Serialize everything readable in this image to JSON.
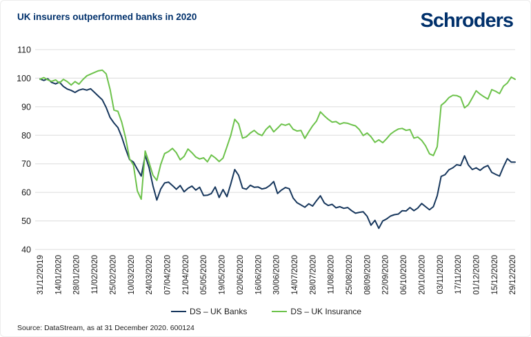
{
  "header": {
    "title": "UK insurers outperformed banks in 2020",
    "logo_text": "Schroders"
  },
  "footer": {
    "source": "Source: DataStream, as at 31 December 2020. 600124"
  },
  "colors": {
    "heading": "#00306b",
    "logo": "#00306b",
    "banks_line": "#16365c",
    "insurance_line": "#6cc24a",
    "grid": "#dcdcdc",
    "axis_text": "#1a1a1a"
  },
  "chart_data": {
    "type": "line",
    "title": "UK insurers outperformed banks in 2020",
    "xlabel": "",
    "ylabel": "",
    "ylim": [
      40,
      110
    ],
    "yticks": [
      110,
      100,
      90,
      80,
      70,
      60,
      50,
      40
    ],
    "grid": "horizontal",
    "legend_position": "bottom",
    "x_tick_labels": [
      "31/12/2019",
      "14/01/2020",
      "28/01/2020",
      "11/02/2020",
      "25/02/2020",
      "10/03/2020",
      "24/03/2020",
      "07/04/2020",
      "21/04/2020",
      "05/05/2020",
      "19/05/2020",
      "02/06/2020",
      "16/06/2020",
      "30/06/2020",
      "14/07/2020",
      "28/07/2020",
      "11/08/2020",
      "25/08/2020",
      "08/09/2020",
      "22/09/2020",
      "06/10/2020",
      "20/10/2020",
      "03/11/2020",
      "17/11/2020",
      "01/12/2020",
      "15/12/2020",
      "29/12/2020"
    ],
    "x_tick_interval_days": 14,
    "sample_interval_days": 3,
    "total_days": 366,
    "index_base": "31/12/2019 = 100",
    "series": [
      {
        "name": "DS – UK Banks",
        "color": "#16365c",
        "values": [
          99.7,
          99.2,
          99.8,
          98.5,
          98.0,
          98.6,
          97.1,
          96.2,
          95.7,
          95.0,
          95.8,
          96.2,
          95.8,
          96.3,
          95.0,
          93.7,
          92.4,
          89.7,
          86.2,
          84.3,
          82.7,
          79.4,
          75.2,
          71.5,
          70.6,
          68.1,
          65.7,
          72.9,
          68.7,
          62.3,
          57.3,
          61.2,
          63.3,
          63.6,
          62.4,
          61.1,
          62.4,
          60.2,
          61.4,
          62.2,
          60.8,
          61.8,
          58.9,
          59.0,
          59.6,
          61.9,
          58.2,
          61.0,
          58.5,
          63.0,
          68.0,
          66.0,
          61.5,
          61.1,
          62.5,
          61.8,
          61.9,
          61.2,
          61.5,
          62.4,
          63.8,
          59.6,
          60.8,
          61.7,
          61.3,
          58.0,
          56.4,
          55.6,
          54.8,
          56.0,
          55.2,
          57.1,
          58.8,
          56.3,
          55.4,
          55.8,
          54.6,
          55.0,
          54.4,
          54.7,
          53.6,
          52.7,
          53.0,
          53.2,
          51.6,
          48.5,
          50.2,
          47.4,
          50.0,
          50.7,
          51.7,
          52.2,
          52.4,
          53.6,
          53.5,
          54.7,
          53.6,
          54.5,
          56.1,
          55.0,
          53.9,
          55.0,
          58.8,
          65.6,
          66.2,
          67.9,
          68.6,
          69.7,
          69.4,
          72.8,
          69.6,
          68.0,
          68.6,
          67.7,
          68.8,
          69.4,
          67.0,
          66.3,
          65.7,
          69.0,
          71.8,
          70.6,
          70.6
        ]
      },
      {
        "name": "DS – UK Insurance",
        "color": "#6cc24a",
        "values": [
          99.6,
          100.2,
          99.4,
          98.9,
          99.4,
          98.3,
          99.6,
          98.8,
          97.6,
          98.8,
          97.9,
          99.5,
          100.8,
          101.4,
          102.0,
          102.6,
          102.8,
          101.5,
          96.0,
          88.8,
          88.4,
          84.5,
          79.0,
          71.8,
          69.6,
          60.5,
          57.6,
          74.5,
          70.5,
          66.0,
          64.2,
          69.8,
          73.6,
          74.3,
          75.4,
          73.9,
          71.4,
          72.6,
          75.2,
          73.9,
          72.4,
          71.7,
          72.1,
          70.7,
          73.1,
          72.1,
          70.8,
          72.0,
          76.0,
          80.0,
          85.6,
          84.0,
          79.0,
          79.5,
          80.8,
          81.7,
          80.5,
          79.9,
          82.0,
          83.3,
          81.2,
          82.5,
          83.9,
          83.5,
          84.0,
          82.1,
          81.5,
          81.7,
          78.9,
          81.2,
          83.3,
          85.0,
          88.2,
          86.8,
          85.6,
          84.6,
          84.8,
          83.9,
          84.4,
          84.2,
          83.7,
          83.3,
          82.0,
          79.9,
          80.8,
          79.5,
          77.5,
          78.4,
          77.4,
          78.8,
          80.4,
          81.4,
          82.2,
          82.4,
          81.7,
          82.0,
          79.0,
          79.4,
          78.2,
          76.3,
          73.5,
          72.9,
          76.0,
          90.5,
          91.6,
          93.2,
          94.0,
          93.9,
          93.3,
          89.6,
          90.7,
          93.1,
          95.6,
          94.4,
          93.5,
          92.7,
          96.0,
          95.4,
          94.6,
          97.2,
          98.3,
          100.4,
          99.6
        ]
      }
    ]
  }
}
